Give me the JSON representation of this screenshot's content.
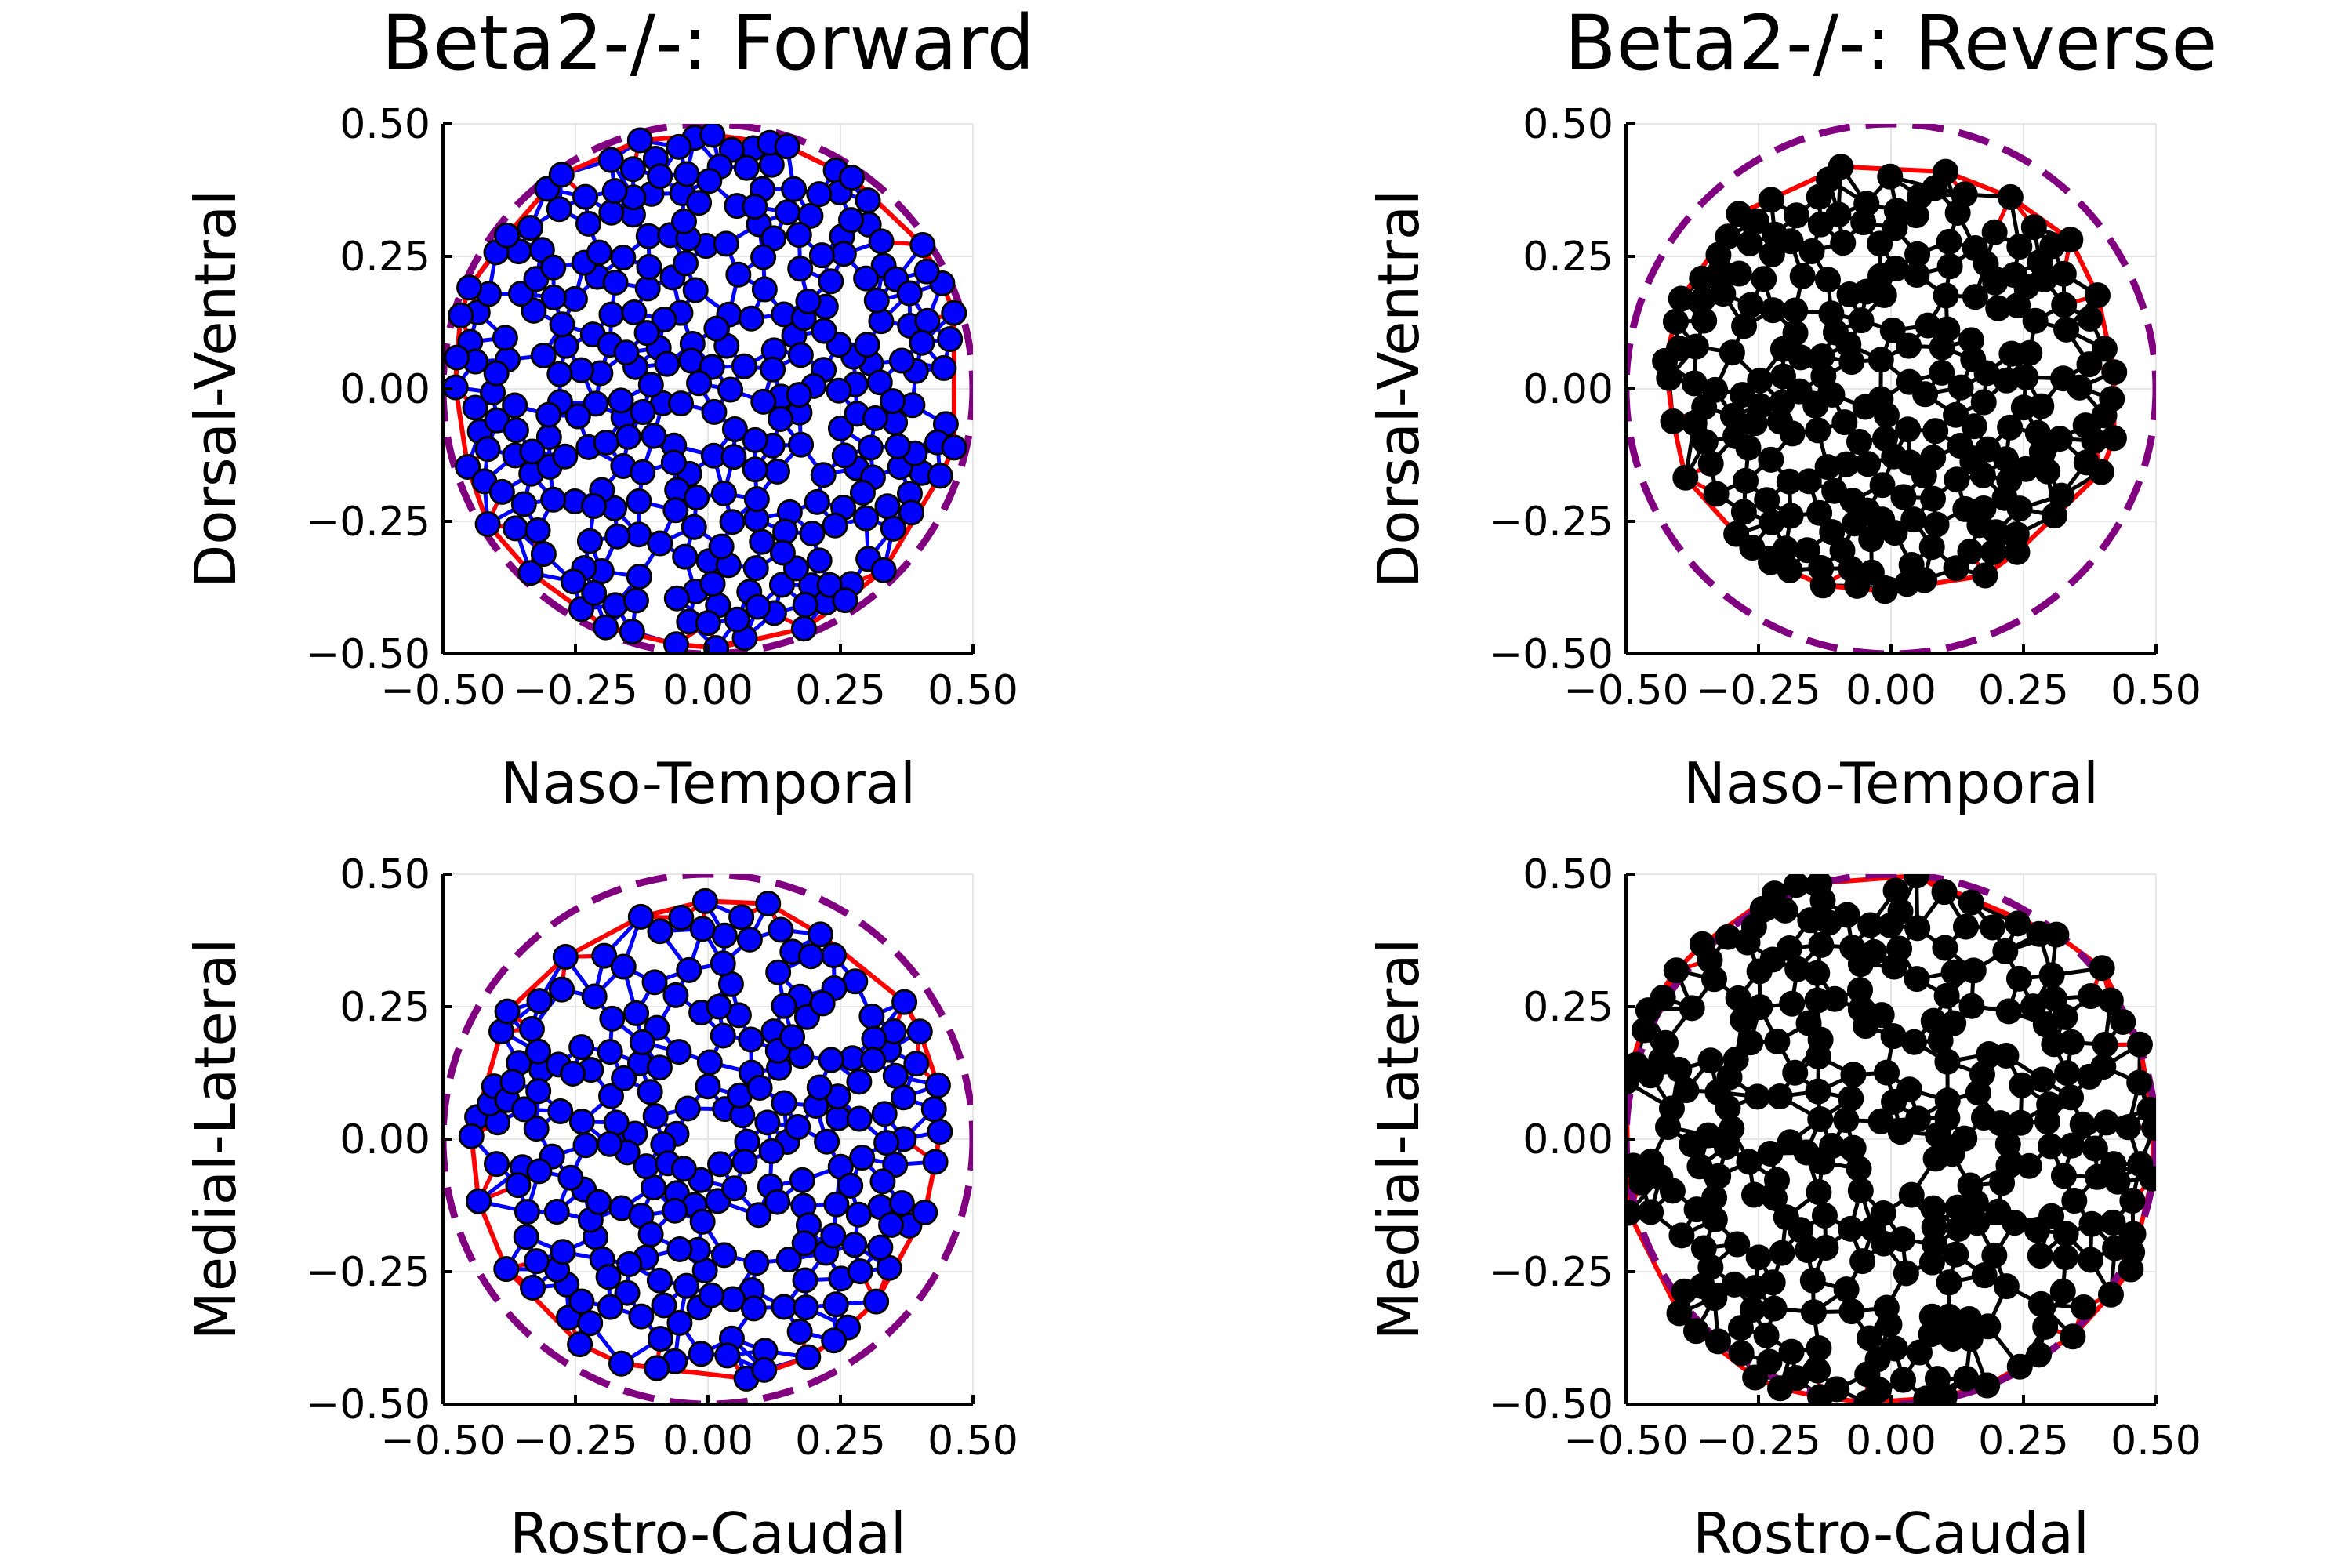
{
  "figure": {
    "layout": "2x2 grid of network scatter plots",
    "colors": {
      "boundary_circle": "#800080",
      "boundary_edges": "#ff0000",
      "forward_nodes": "#0000ff",
      "forward_edges": "#0000ff",
      "reverse_nodes": "#000000",
      "reverse_edges": "#000000",
      "node_outline": "#000000"
    }
  },
  "chart_data": [
    {
      "id": "forward-top",
      "type": "scatter",
      "title": "Beta2-/-: Forward",
      "xlabel": "Naso-Temporal",
      "ylabel": "Dorsal-Ventral",
      "xlim": [
        -0.5,
        0.5
      ],
      "ylim": [
        -0.5,
        0.5
      ],
      "xticks": [
        "−0.50",
        "−0.25",
        "0.00",
        "0.25",
        "0.50"
      ],
      "yticks": [
        "−0.50",
        "−0.25",
        "0.00",
        "0.25",
        "0.50"
      ],
      "grid": true,
      "legend": "none",
      "boundary_circle": {
        "center": [
          0,
          0
        ],
        "radius": 0.5,
        "style": "dashed",
        "color": "#800080"
      },
      "node_color": "#0000ff",
      "interior_edge_color": "#0000ff",
      "hull_edge_color": "#ff0000",
      "seed": 101,
      "node_count": 300,
      "extent": {
        "center": [
          0.0,
          0.0
        ],
        "rx": 0.49,
        "ry": 0.49
      },
      "max_edges_per_node": 4
    },
    {
      "id": "reverse-top",
      "type": "scatter",
      "title": "Beta2-/-: Reverse",
      "xlabel": "Naso-Temporal",
      "ylabel": "Dorsal-Ventral",
      "xlim": [
        -0.5,
        0.5
      ],
      "ylim": [
        -0.5,
        0.5
      ],
      "xticks": [
        "−0.50",
        "−0.25",
        "0.00",
        "0.25",
        "0.50"
      ],
      "yticks": [
        "−0.50",
        "−0.25",
        "0.00",
        "0.25",
        "0.50"
      ],
      "grid": true,
      "legend": "none",
      "boundary_circle": {
        "center": [
          0,
          0
        ],
        "radius": 0.5,
        "style": "dashed",
        "color": "#800080"
      },
      "node_color": "#000000",
      "interior_edge_color": "#000000",
      "hull_edge_color": "#ff0000",
      "seed": 202,
      "node_count": 230,
      "extent": {
        "center": [
          0.0,
          0.02
        ],
        "rx": 0.44,
        "ry": 0.41
      },
      "max_edges_per_node": 4
    },
    {
      "id": "forward-bottom",
      "type": "scatter",
      "title": "",
      "xlabel": "Rostro-Caudal",
      "ylabel": "Medial-Lateral",
      "xlim": [
        -0.5,
        0.5
      ],
      "ylim": [
        -0.5,
        0.5
      ],
      "xticks": [
        "−0.50",
        "−0.25",
        "0.00",
        "0.25",
        "0.50"
      ],
      "yticks": [
        "−0.50",
        "−0.25",
        "0.00",
        "0.25",
        "0.50"
      ],
      "grid": true,
      "legend": "none",
      "boundary_circle": {
        "center": [
          0,
          0
        ],
        "radius": 0.5,
        "style": "dashed",
        "color": "#800080"
      },
      "node_color": "#0000ff",
      "interior_edge_color": "#0000ff",
      "hull_edge_color": "#ff0000",
      "seed": 303,
      "node_count": 230,
      "extent": {
        "center": [
          0.0,
          0.0
        ],
        "rx": 0.45,
        "ry": 0.46
      },
      "max_edges_per_node": 4
    },
    {
      "id": "reverse-bottom",
      "type": "scatter",
      "title": "",
      "xlabel": "Rostro-Caudal",
      "ylabel": "Medial-Lateral",
      "xlim": [
        -0.5,
        0.5
      ],
      "ylim": [
        -0.5,
        0.5
      ],
      "xticks": [
        "−0.50",
        "−0.25",
        "0.00",
        "0.25",
        "0.50"
      ],
      "yticks": [
        "−0.50",
        "−0.25",
        "0.00",
        "0.25",
        "0.50"
      ],
      "grid": true,
      "legend": "none",
      "boundary_circle": {
        "center": [
          0,
          0
        ],
        "radius": 0.5,
        "style": "dashed",
        "color": "#800080"
      },
      "node_color": "#000000",
      "interior_edge_color": "#000000",
      "hull_edge_color": "#ff0000",
      "seed": 404,
      "node_count": 290,
      "extent": {
        "center": [
          0.0,
          0.0
        ],
        "rx": 0.52,
        "ry": 0.52
      },
      "max_edges_per_node": 4
    }
  ]
}
